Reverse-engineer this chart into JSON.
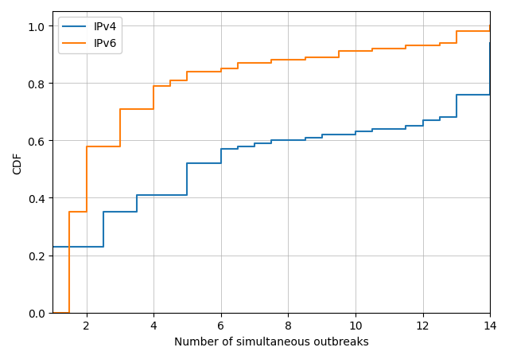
{
  "ipv4_x": [
    1,
    2,
    2.5,
    3,
    3.5,
    4,
    5,
    5.5,
    6,
    6.5,
    7,
    7.5,
    8,
    8.5,
    9,
    9.5,
    10,
    10.5,
    11,
    11.5,
    12,
    12.5,
    13,
    14
  ],
  "ipv4_y": [
    0.23,
    0.23,
    0.35,
    0.35,
    0.41,
    0.41,
    0.52,
    0.52,
    0.57,
    0.58,
    0.59,
    0.6,
    0.6,
    0.61,
    0.62,
    0.62,
    0.63,
    0.64,
    0.64,
    0.65,
    0.67,
    0.68,
    0.76,
    0.94
  ],
  "ipv6_x": [
    1,
    1.5,
    2,
    2.5,
    3,
    3.5,
    4,
    4.5,
    5,
    5.5,
    6,
    6.5,
    7,
    7.5,
    8,
    8.5,
    9,
    9.5,
    10,
    10.5,
    11,
    11.5,
    12,
    12.5,
    13,
    13.5,
    14
  ],
  "ipv6_y": [
    0.0,
    0.35,
    0.58,
    0.58,
    0.71,
    0.71,
    0.79,
    0.81,
    0.84,
    0.84,
    0.85,
    0.87,
    0.87,
    0.88,
    0.88,
    0.89,
    0.89,
    0.91,
    0.91,
    0.92,
    0.92,
    0.93,
    0.93,
    0.94,
    0.98,
    0.98,
    1.0
  ],
  "ipv4_color": "#1f77b4",
  "ipv6_color": "#ff7f0e",
  "xlabel": "Number of simultaneous outbreaks",
  "ylabel": "CDF",
  "xlim": [
    1,
    14
  ],
  "ylim": [
    0.0,
    1.05
  ],
  "xticks": [
    2,
    4,
    6,
    8,
    10,
    12,
    14
  ],
  "yticks": [
    0.0,
    0.2,
    0.4,
    0.6,
    0.8,
    1.0
  ],
  "legend_ipv4": "IPv4",
  "legend_ipv6": "IPv6",
  "linewidth": 1.5
}
